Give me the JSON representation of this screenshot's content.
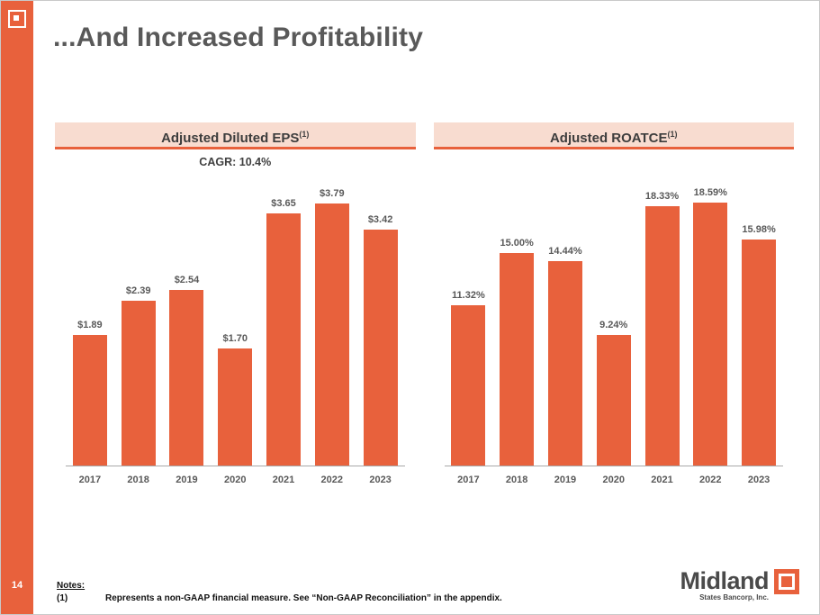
{
  "slide": {
    "title": "...And Increased Profitability",
    "page_number": "14",
    "notes_label": "Notes:",
    "footnote_marker": "(1)",
    "footnote_text": "Represents a non-GAAP financial measure. See “Non-GAAP Reconciliation” in the appendix.",
    "logo": {
      "name": "Midland",
      "subtitle": "States Bancorp, Inc."
    }
  },
  "colors": {
    "accent_orange": "#E8613C",
    "header_band_bg": "#F8DCD0",
    "title_gray": "#595959"
  },
  "chart_data": [
    {
      "type": "bar",
      "title": "Adjusted Diluted EPS",
      "title_superscript": "(1)",
      "subtitle": "CAGR: 10.4%",
      "categories": [
        "2017",
        "2018",
        "2019",
        "2020",
        "2021",
        "2022",
        "2023"
      ],
      "values": [
        1.89,
        2.39,
        2.54,
        1.7,
        3.65,
        3.79,
        3.42
      ],
      "labels": [
        "$1.89",
        "$2.39",
        "$2.54",
        "$1.70",
        "$3.65",
        "$3.79",
        "$3.42"
      ],
      "ylabel": "",
      "xlabel": "",
      "ylim": [
        0,
        4.2
      ],
      "grid": false,
      "legend": "none",
      "bar_color": "#E8613C"
    },
    {
      "type": "bar",
      "title": "Adjusted ROATCE",
      "title_superscript": "(1)",
      "subtitle": "",
      "categories": [
        "2017",
        "2018",
        "2019",
        "2020",
        "2021",
        "2022",
        "2023"
      ],
      "values": [
        11.32,
        15.0,
        14.44,
        9.24,
        18.33,
        18.59,
        15.98
      ],
      "labels": [
        "11.32%",
        "15.00%",
        "14.44%",
        "9.24%",
        "18.33%",
        "18.59%",
        "15.98%"
      ],
      "ylabel": "",
      "xlabel": "",
      "ylim": [
        0,
        20.5
      ],
      "grid": false,
      "legend": "none",
      "bar_color": "#E8613C"
    }
  ]
}
